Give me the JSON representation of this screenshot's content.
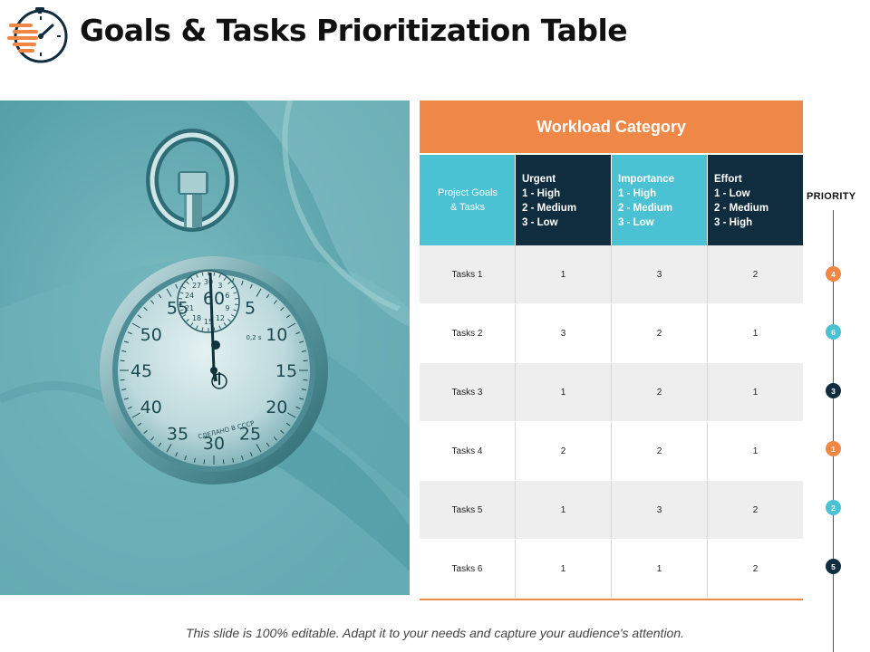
{
  "header": {
    "title": "Goals & Tasks Prioritization Table",
    "logo_icon": "stopwatch-speed-icon"
  },
  "colors": {
    "accent_orange": "#ef8747",
    "accent_teal": "#4bc2d3",
    "accent_navy": "#0f2d3e",
    "photo_tint": "#5aa6ae"
  },
  "photo": {
    "alt": "stopwatch-in-hand-photo",
    "dial_numbers": [
      "60",
      "5",
      "10",
      "15",
      "20",
      "25",
      "30",
      "35",
      "40",
      "45",
      "50",
      "55"
    ],
    "subdial_numbers": [
      "30",
      "3",
      "6",
      "9",
      "12",
      "15",
      "18",
      "21",
      "24",
      "27"
    ],
    "dial_mark": "0,2 s",
    "dial_text": "СДЕЛАНО В СССР"
  },
  "table": {
    "category_header": "Workload Category",
    "columns": [
      {
        "lines": [
          "Project Goals",
          "& Tasks"
        ]
      },
      {
        "lines": [
          "Urgent",
          "1 - High",
          "2 - Medium",
          "3 - Low"
        ]
      },
      {
        "lines": [
          "Importance",
          "1 - High",
          "2 - Medium",
          "3 - Low"
        ]
      },
      {
        "lines": [
          "Effort",
          "1 - Low",
          "2 - Medium",
          "3 - High"
        ]
      }
    ],
    "rows": [
      {
        "task": "Tasks 1",
        "urgent": "1",
        "importance": "3",
        "effort": "2"
      },
      {
        "task": "Tasks 2",
        "urgent": "3",
        "importance": "2",
        "effort": "1"
      },
      {
        "task": "Tasks 3",
        "urgent": "1",
        "importance": "2",
        "effort": "1"
      },
      {
        "task": "Tasks 4",
        "urgent": "2",
        "importance": "2",
        "effort": "1"
      },
      {
        "task": "Tasks 5",
        "urgent": "1",
        "importance": "3",
        "effort": "2"
      },
      {
        "task": "Tasks 6",
        "urgent": "1",
        "importance": "1",
        "effort": "2"
      }
    ]
  },
  "priority": {
    "label": "PRIORITY",
    "values": [
      {
        "value": "4",
        "color": "#ef8747"
      },
      {
        "value": "6",
        "color": "#4bc2d3"
      },
      {
        "value": "3",
        "color": "#0f2d3e"
      },
      {
        "value": "1",
        "color": "#ef8747"
      },
      {
        "value": "2",
        "color": "#4bc2d3"
      },
      {
        "value": "5",
        "color": "#0f2d3e"
      }
    ]
  },
  "footer": {
    "text": "This slide is 100% editable. Adapt it to your needs and capture your audience's attention."
  }
}
